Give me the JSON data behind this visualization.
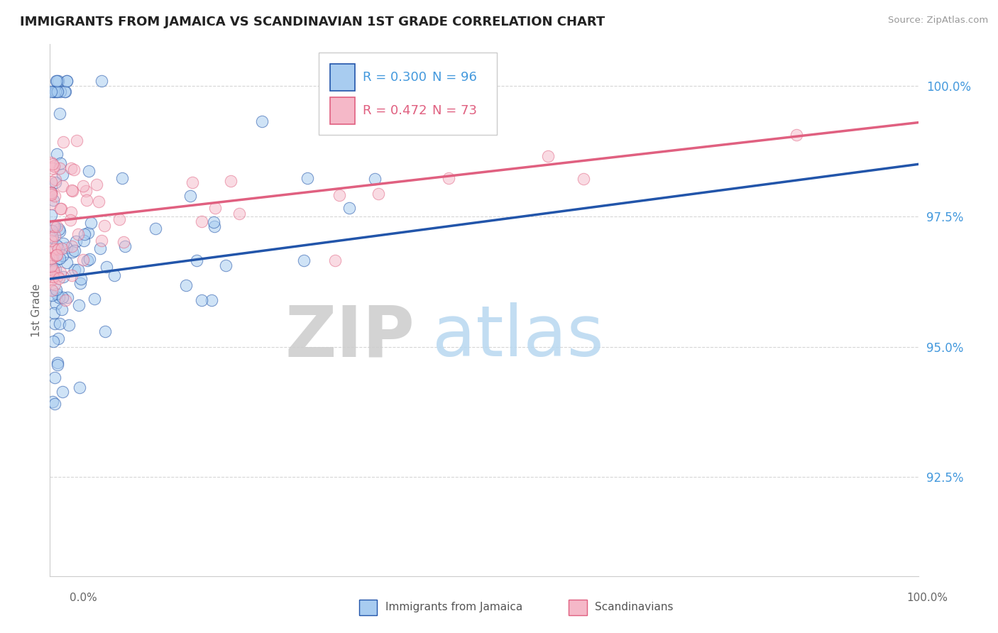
{
  "title": "IMMIGRANTS FROM JAMAICA VS SCANDINAVIAN 1ST GRADE CORRELATION CHART",
  "source": "Source: ZipAtlas.com",
  "ylabel": "1st Grade",
  "ytick_labels": [
    "100.0%",
    "97.5%",
    "95.0%",
    "92.5%"
  ],
  "ytick_values": [
    1.0,
    0.975,
    0.95,
    0.925
  ],
  "xmin": 0.0,
  "xmax": 1.0,
  "ymin": 0.906,
  "ymax": 1.008,
  "legend_blue_r": "R = 0.300",
  "legend_blue_n": "N = 96",
  "legend_pink_r": "R = 0.472",
  "legend_pink_n": "N = 73",
  "legend_label_blue": "Immigrants from Jamaica",
  "legend_label_pink": "Scandinavians",
  "color_blue": "#A8CCF0",
  "color_pink": "#F5B8C8",
  "line_color_blue": "#2255AA",
  "line_color_pink": "#E06080",
  "color_text_blue": "#4499DD",
  "color_text_pink": "#E06080",
  "blue_trend_start": 0.963,
  "blue_trend_end": 0.985,
  "pink_trend_start": 0.974,
  "pink_trend_end": 0.993
}
